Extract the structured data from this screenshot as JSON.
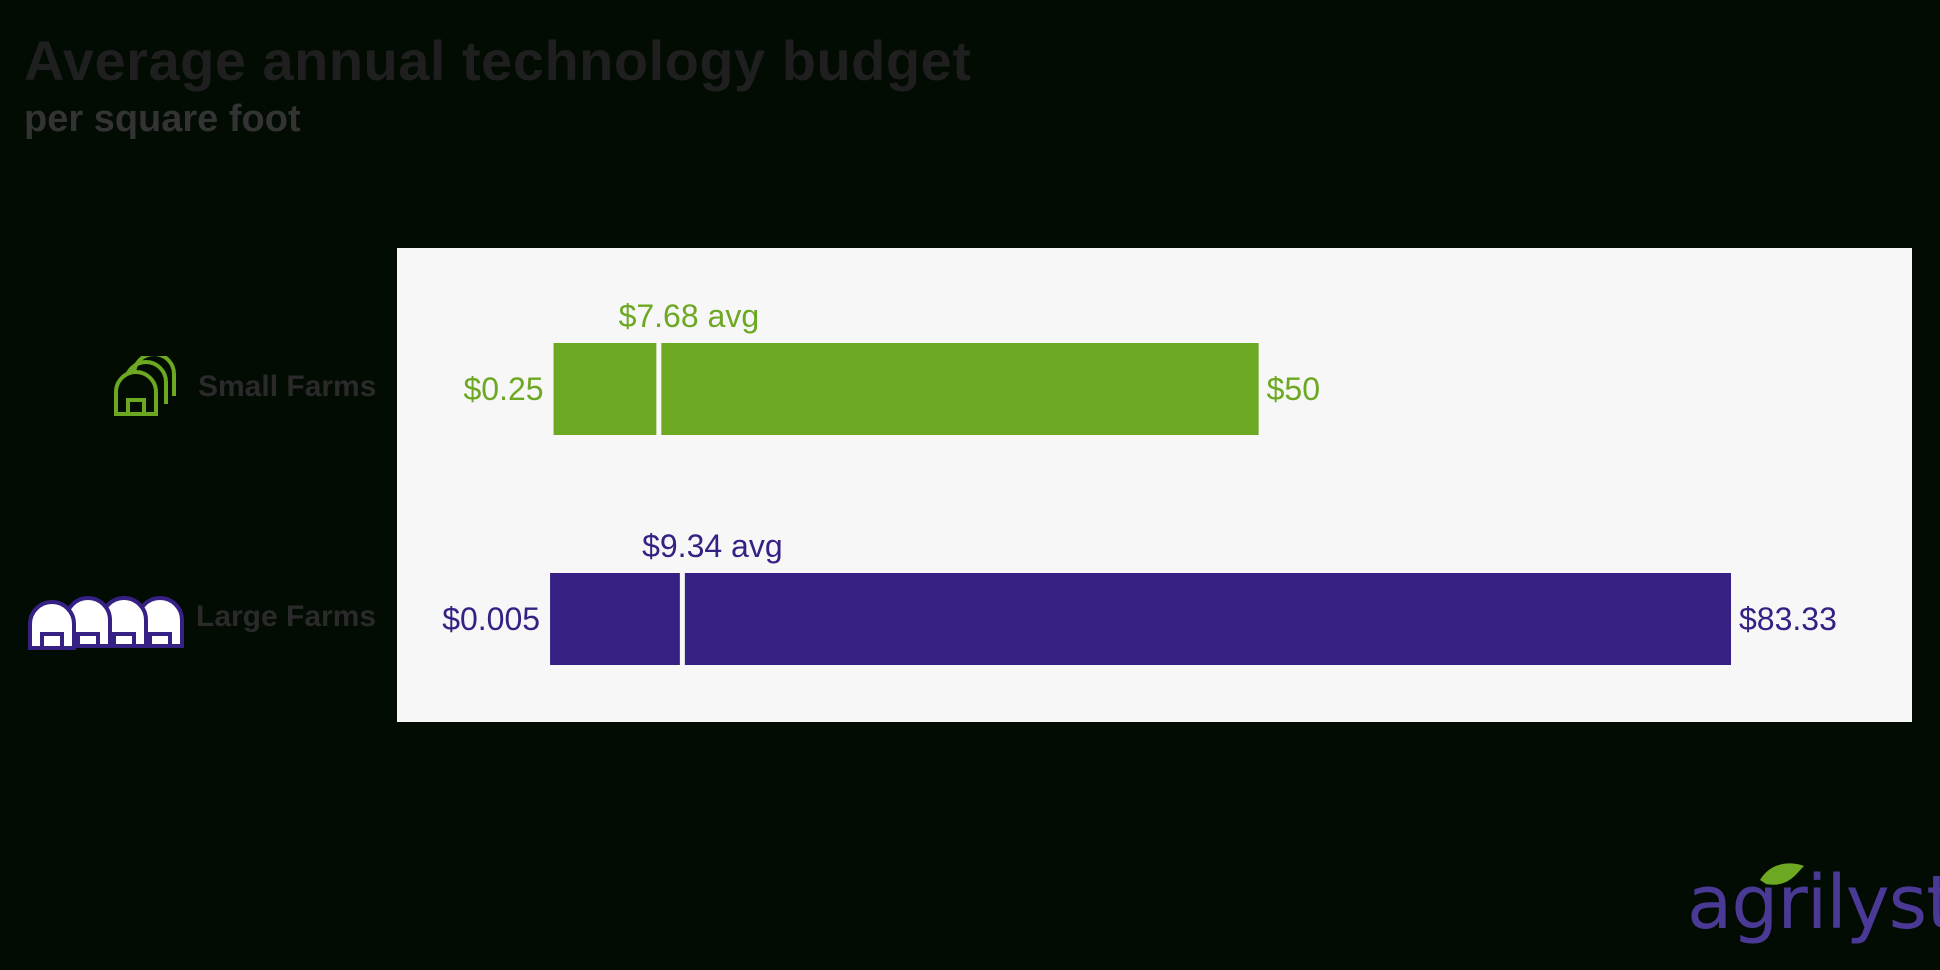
{
  "title": "Average annual technology budget",
  "subtitle": "per square foot",
  "colors": {
    "small": "#6ca822",
    "large": "#372084",
    "panel": "#f7f7f7"
  },
  "chart_data": {
    "type": "bar",
    "orientation": "horizontal range bars with average marker",
    "title": "Average annual technology budget",
    "subtitle": "per square foot",
    "unit": "$ per sq ft",
    "xlim": [
      0,
      83.33
    ],
    "series": [
      {
        "name": "Small Farms",
        "icon": "greenhouse-icon",
        "min": 0.25,
        "max": 50,
        "avg": 7.68,
        "min_label": "$0.25",
        "max_label": "$50",
        "avg_label": "$7.68 avg",
        "color": "#6ca822"
      },
      {
        "name": "Large Farms",
        "icon": "greenhouses-icon",
        "min": 0.005,
        "max": 83.33,
        "avg": 9.34,
        "min_label": "$0.005",
        "max_label": "$83.33",
        "avg_label": "$9.34 avg",
        "color": "#372084"
      }
    ]
  },
  "brand": {
    "logo_text": "agrilyst"
  }
}
